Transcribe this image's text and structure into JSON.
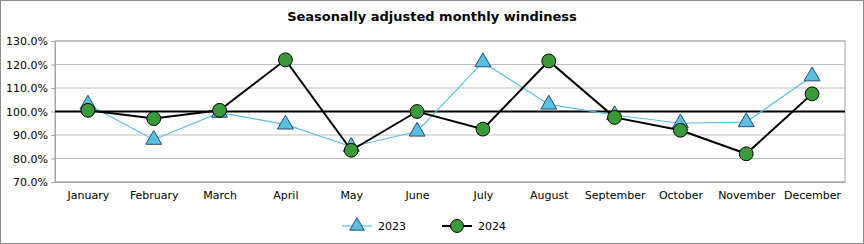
{
  "chart_data": {
    "type": "line",
    "title": "Seasonally adjusted monthly windiness",
    "categories": [
      "January",
      "February",
      "March",
      "April",
      "May",
      "June",
      "July",
      "August",
      "September",
      "October",
      "November",
      "December"
    ],
    "series": [
      {
        "name": "2023",
        "color": "#5bbfe0",
        "marker": "triangle",
        "line_style": "solid",
        "values": [
          103,
          88,
          99.5,
          94.5,
          85,
          91.5,
          121,
          103,
          98.5,
          95,
          95.5,
          115
        ]
      },
      {
        "name": "2024",
        "color": "#3a9a3a",
        "marker": "circle",
        "line_style": "solid",
        "values": [
          100.5,
          97,
          100.5,
          122,
          83.5,
          100,
          92.5,
          121.5,
          97.5,
          92,
          82,
          107.5
        ]
      }
    ],
    "reference_value": 100,
    "ylim": [
      70,
      130
    ],
    "yticks": [
      {
        "value": 70,
        "label": "70.0%"
      },
      {
        "value": 80,
        "label": "80.0%"
      },
      {
        "value": 90,
        "label": "90.0%"
      },
      {
        "value": 100,
        "label": "100.0%"
      },
      {
        "value": 110,
        "label": "110.0%"
      },
      {
        "value": 120,
        "label": "120.0%"
      },
      {
        "value": 130,
        "label": "130.0%"
      }
    ],
    "grid": true,
    "legend": "bottom"
  }
}
